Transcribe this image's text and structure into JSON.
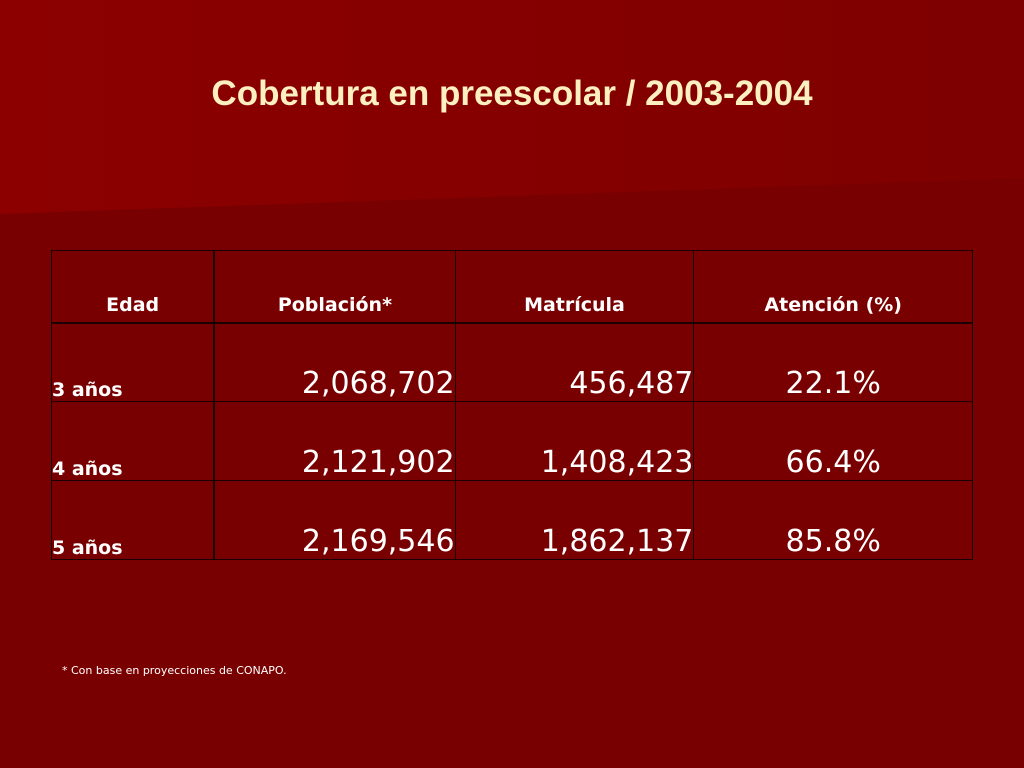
{
  "slide": {
    "title": "Cobertura en preescolar / 2003-2004",
    "footnote": "* Con base en proyecciones de CONAPO."
  },
  "table": {
    "headers": [
      "Edad",
      "Población*",
      "Matrícula",
      "Atención (%)"
    ],
    "rows": [
      {
        "edad": "3 años",
        "poblacion": "2,068,702",
        "matricula": "456,487",
        "atencion": "22.1%"
      },
      {
        "edad": "4 años",
        "poblacion": "2,121,902",
        "matricula": "1,408,423",
        "atencion": "66.4%"
      },
      {
        "edad": "5 años",
        "poblacion": "2,169,546",
        "matricula": "1,862,137",
        "atencion": "85.8%"
      }
    ]
  },
  "colors": {
    "background": "#790000",
    "band": "#8a0000",
    "title": "#fdf0c0",
    "text": "#ffffff",
    "border": "#1a0000"
  }
}
